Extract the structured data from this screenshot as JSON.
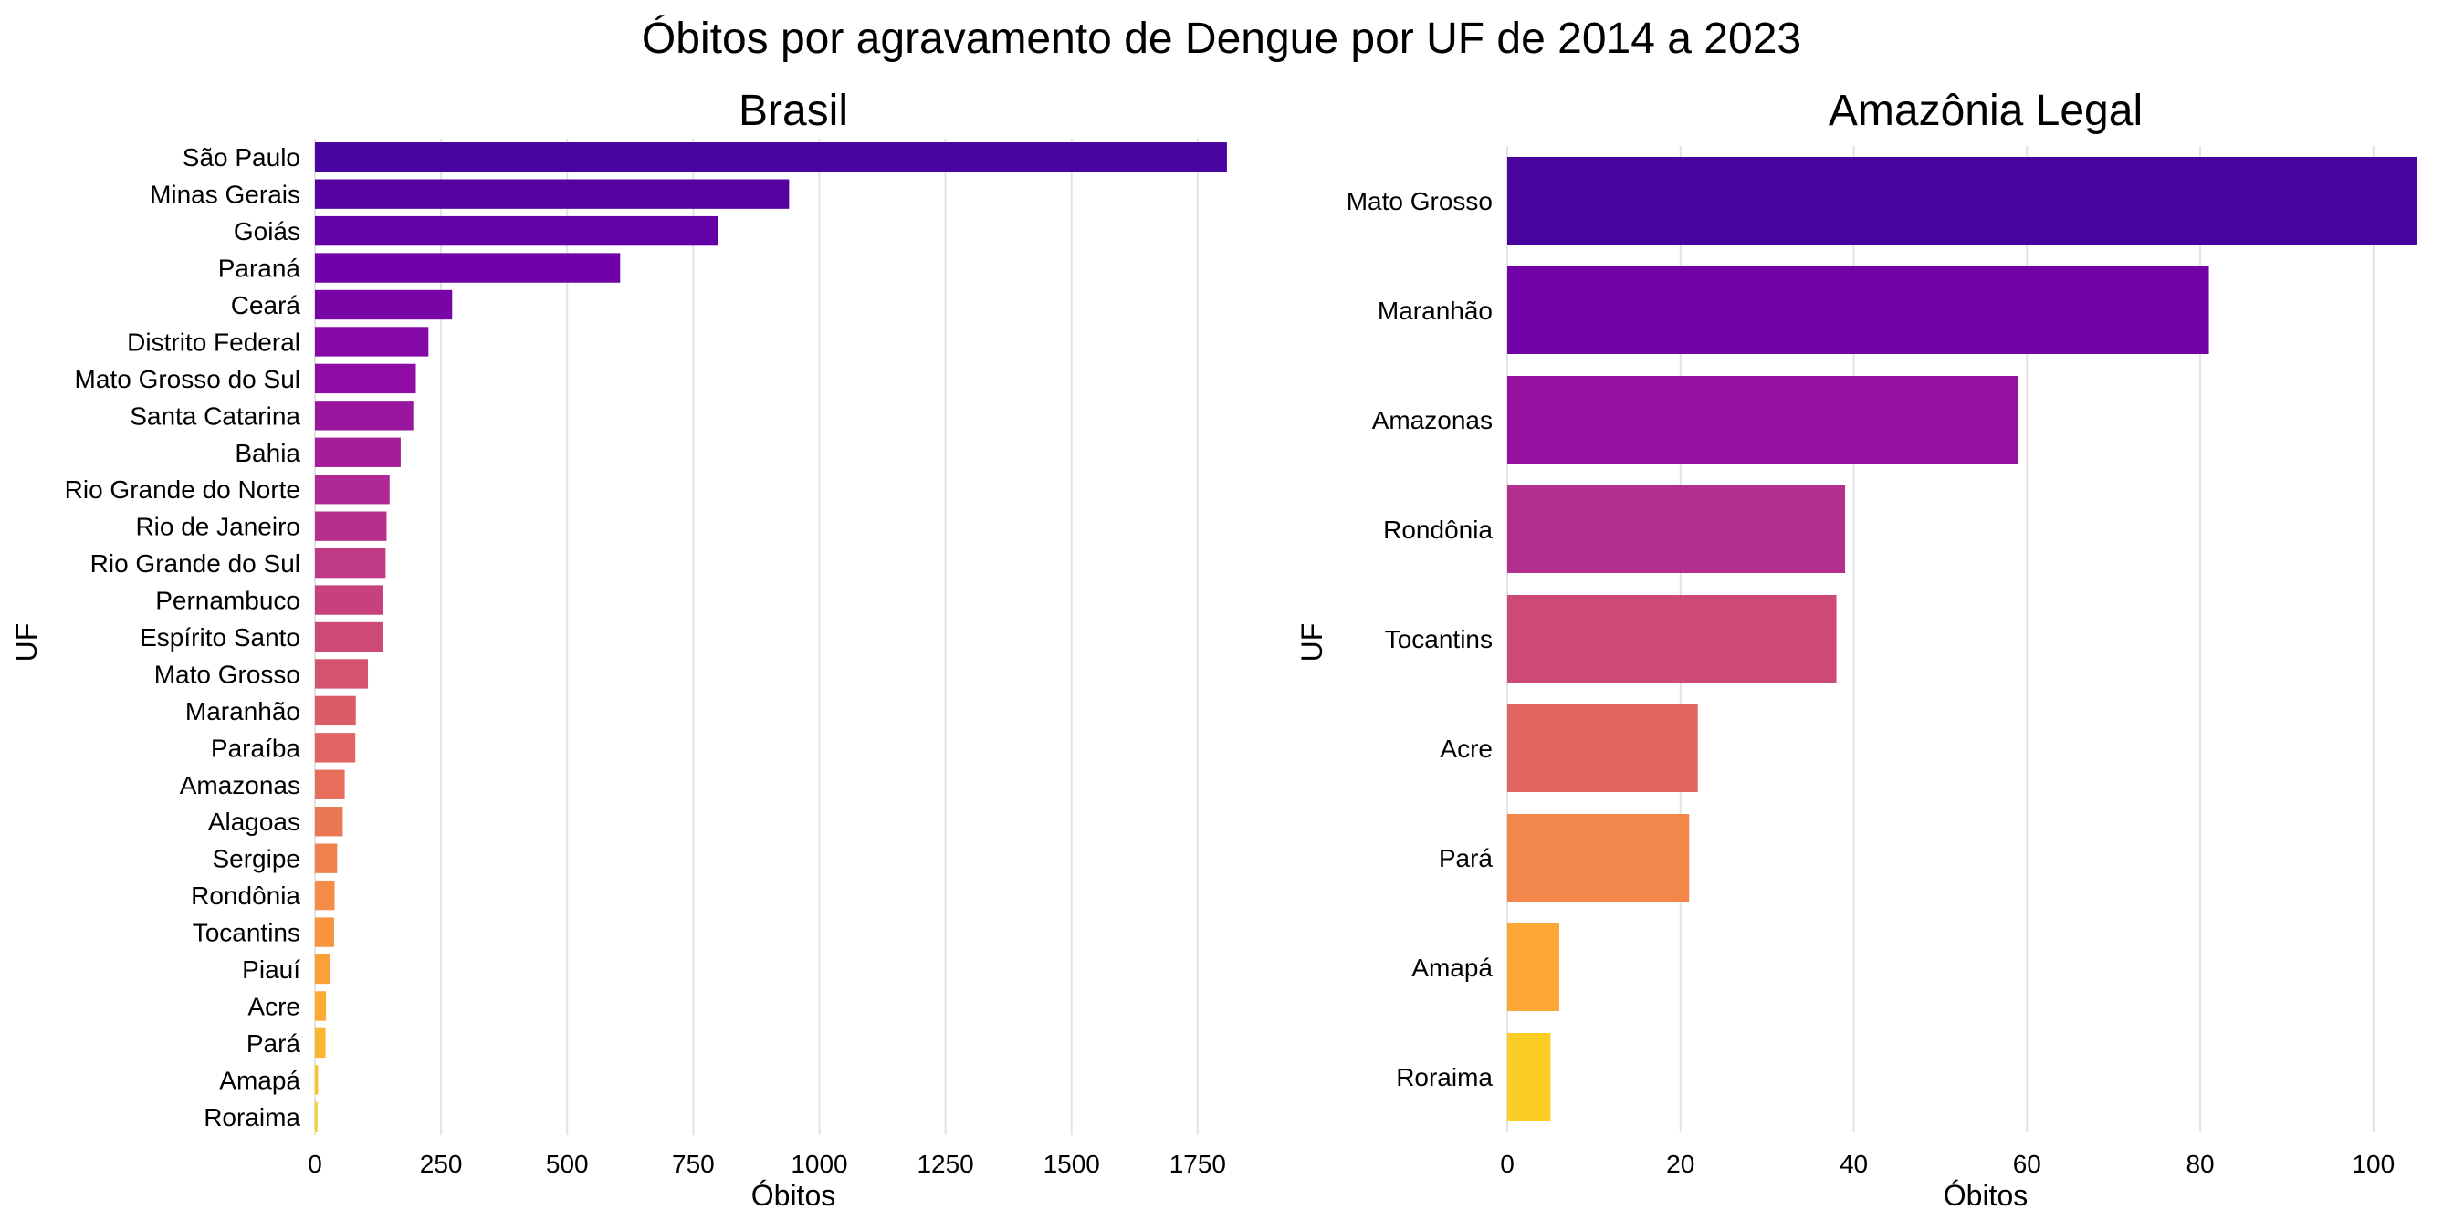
{
  "suptitle": "Óbitos por agravamento de Dengue por UF de 2014 a 2023",
  "chart_data": [
    {
      "type": "bar",
      "orientation": "horizontal",
      "title": "Brasil",
      "xlabel": "Óbitos",
      "ylabel": "UF",
      "xlim": [
        0,
        1810
      ],
      "xticks": [
        0,
        250,
        500,
        750,
        1000,
        1250,
        1500,
        1750
      ],
      "grid": "vertical",
      "categories": [
        "São Paulo",
        "Minas Gerais",
        "Goiás",
        "Paraná",
        "Ceará",
        "Distrito Federal",
        "Mato Grosso do Sul",
        "Santa Catarina",
        "Bahia",
        "Rio Grande do Norte",
        "Rio de Janeiro",
        "Rio Grande do Sul",
        "Pernambuco",
        "Espírito Santo",
        "Mato Grosso",
        "Maranhão",
        "Paraíba",
        "Amazonas",
        "Alagoas",
        "Sergipe",
        "Rondônia",
        "Tocantins",
        "Piauí",
        "Acre",
        "Pará",
        "Amapá",
        "Roraima"
      ],
      "values": [
        1808,
        940,
        800,
        605,
        272,
        225,
        200,
        195,
        170,
        148,
        142,
        140,
        135,
        135,
        105,
        81,
        80,
        59,
        55,
        44,
        39,
        38,
        30,
        22,
        21,
        6,
        5
      ],
      "palette": "plasma"
    },
    {
      "type": "bar",
      "orientation": "horizontal",
      "title": "Amazônia Legal",
      "xlabel": "Óbitos",
      "ylabel": "UF",
      "xlim": [
        0,
        105.5
      ],
      "xticks": [
        0,
        20,
        40,
        60,
        80,
        100
      ],
      "grid": "vertical",
      "categories": [
        "Mato Grosso",
        "Maranhão",
        "Amazonas",
        "Rondônia",
        "Tocantins",
        "Acre",
        "Pará",
        "Amapá",
        "Roraima"
      ],
      "values": [
        105,
        81,
        59,
        39,
        38,
        22,
        21,
        6,
        5
      ],
      "palette": "plasma"
    }
  ]
}
